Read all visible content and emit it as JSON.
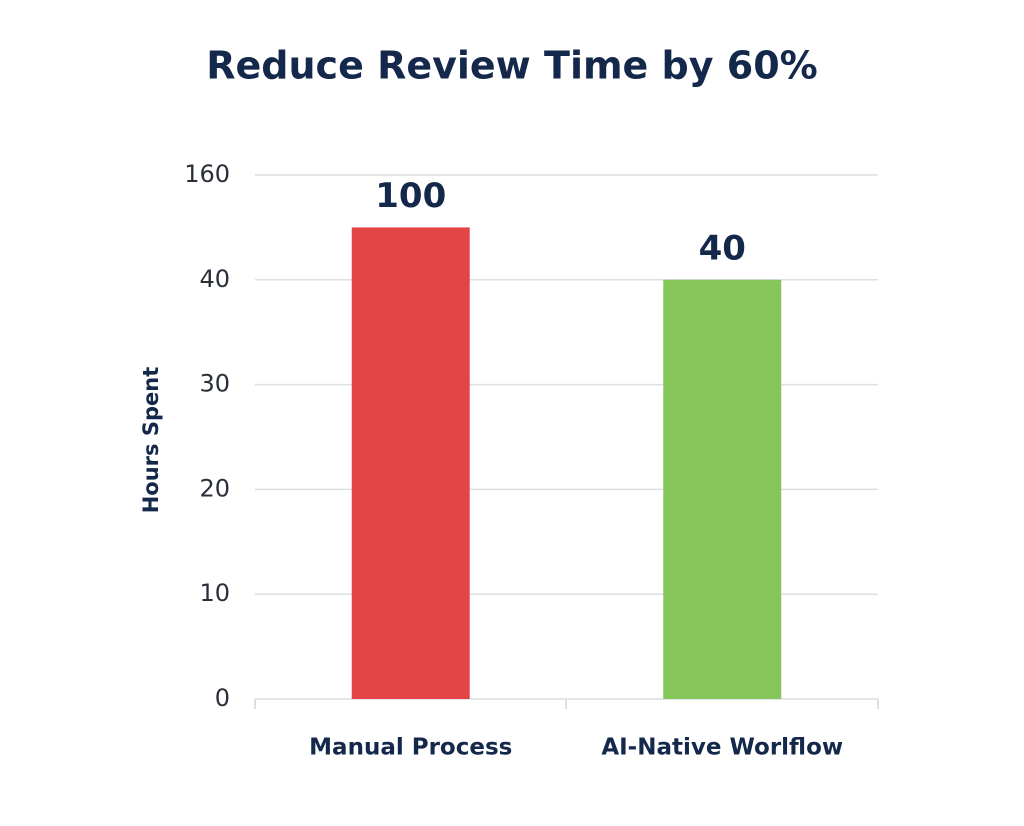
{
  "chart_data": {
    "type": "bar",
    "title": "Reduce Review Time by 60%",
    "y_label": "Hours Spent",
    "categories": [
      "Manual Process",
      "AI-Native Worlflow"
    ],
    "values": [
      100,
      40
    ],
    "colors": [
      "#e34546",
      "#86c55a"
    ],
    "ylim": [
      0,
      160
    ],
    "yticks": [
      0,
      10,
      20,
      30,
      40,
      160
    ],
    "grid": true
  }
}
